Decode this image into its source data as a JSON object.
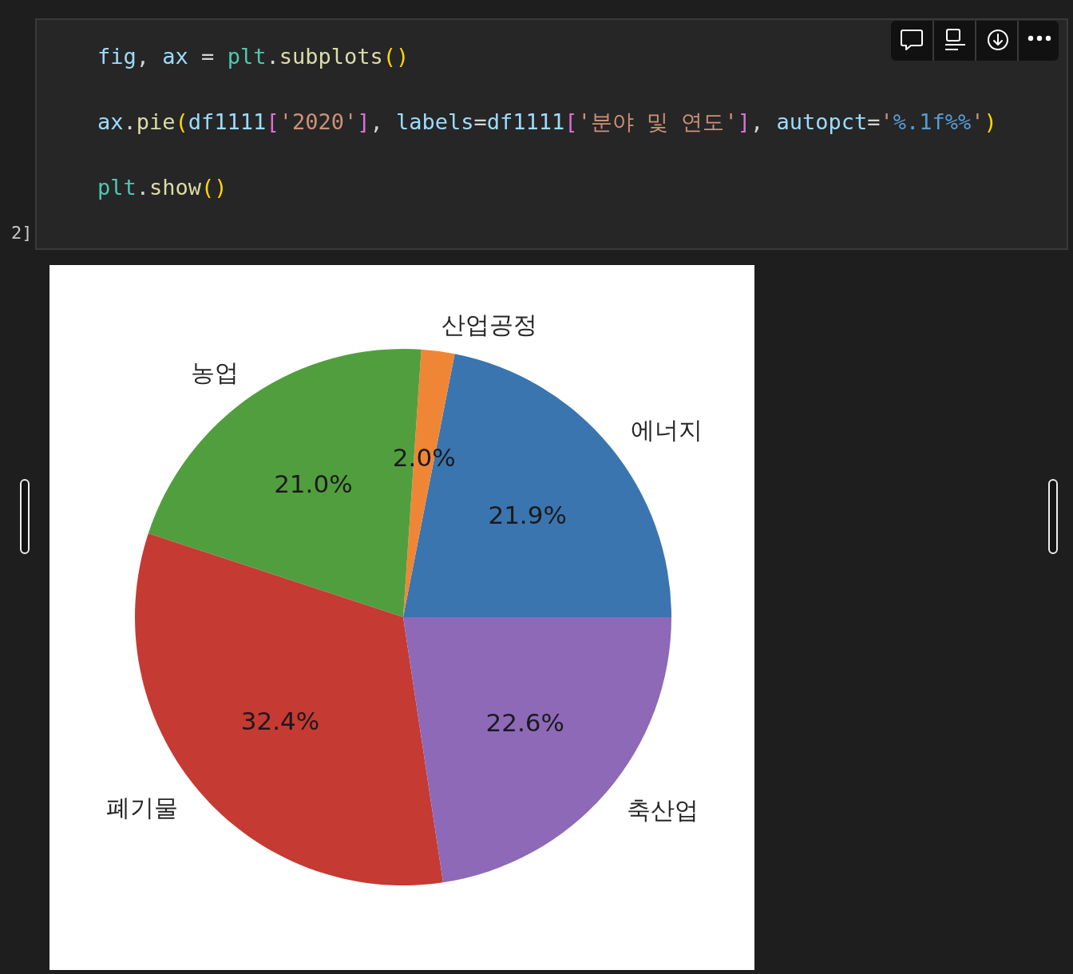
{
  "chart_data": {
    "type": "pie",
    "categories": [
      "에너지",
      "산업공정",
      "농업",
      "폐기물",
      "축산업"
    ],
    "values": [
      21.9,
      2.0,
      21.0,
      32.4,
      22.6
    ],
    "colors": [
      "#3a75af",
      "#ef8636",
      "#519e3e",
      "#c53a32",
      "#8d69b8"
    ],
    "value_labels": [
      "21.9%",
      "2.0%",
      "21.0%",
      "32.4%",
      "22.6%"
    ],
    "annotations": [
      "fig, ax = plt.subplots()",
      "ax.pie(df1111['2020'], labels=df1111['분야 및 연도'], autopct='%.1f%%')",
      "plt.show()",
      "2]"
    ]
  }
}
